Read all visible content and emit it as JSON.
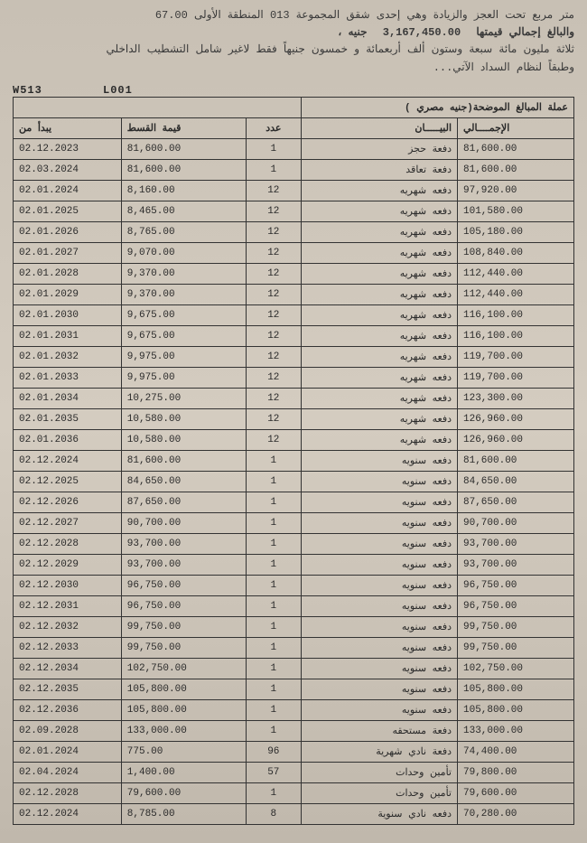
{
  "topText": {
    "line1": "متر مربع تحت العجز والزيادة وهي إحدى شقق المجموعة 013 المنطقة الأولى  67.00",
    "line2_prefix": "والبالغ إجمالي قيمتها",
    "line2_amount": "3,167,450.00",
    "line2_suffix": "جنيه ،",
    "line3": "ثلاثة مليون مائة سبعة وستون ألف أربعمائة و خمسون جنيهاً فقط لاغير شامل التشطيب الداخلي",
    "line4": "وطبقاً لنظام السداد الآتي..."
  },
  "codes": {
    "code1": "W513",
    "code2": "L001"
  },
  "tableHeader": {
    "merged_caption": "عملة المبالغ الموضحة(جنيه مصري )",
    "h_total": "الإجمــــالي",
    "h_desc": "البيـــــان",
    "h_count": "عدد",
    "h_inst": "قيمة القسط",
    "h_date": "يبدأ من"
  },
  "rows": [
    {
      "total": "81,600.00",
      "desc": "دفعة حجز",
      "count": "1",
      "inst": "81,600.00",
      "date": "02.12.2023"
    },
    {
      "total": "81,600.00",
      "desc": "دفعة تعاقد",
      "count": "1",
      "inst": "81,600.00",
      "date": "02.03.2024"
    },
    {
      "total": "97,920.00",
      "desc": "دفعه شهريه",
      "count": "12",
      "inst": "8,160.00",
      "date": "02.01.2024"
    },
    {
      "total": "101,580.00",
      "desc": "دفعه شهريه",
      "count": "12",
      "inst": "8,465.00",
      "date": "02.01.2025"
    },
    {
      "total": "105,180.00",
      "desc": "دفعه شهريه",
      "count": "12",
      "inst": "8,765.00",
      "date": "02.01.2026"
    },
    {
      "total": "108,840.00",
      "desc": "دفعه شهريه",
      "count": "12",
      "inst": "9,070.00",
      "date": "02.01.2027"
    },
    {
      "total": "112,440.00",
      "desc": "دفعه شهريه",
      "count": "12",
      "inst": "9,370.00",
      "date": "02.01.2028"
    },
    {
      "total": "112,440.00",
      "desc": "دفعه شهريه",
      "count": "12",
      "inst": "9,370.00",
      "date": "02.01.2029"
    },
    {
      "total": "116,100.00",
      "desc": "دفعه شهريه",
      "count": "12",
      "inst": "9,675.00",
      "date": "02.01.2030"
    },
    {
      "total": "116,100.00",
      "desc": "دفعه شهريه",
      "count": "12",
      "inst": "9,675.00",
      "date": "02.01.2031"
    },
    {
      "total": "119,700.00",
      "desc": "دفعه شهريه",
      "count": "12",
      "inst": "9,975.00",
      "date": "02.01.2032"
    },
    {
      "total": "119,700.00",
      "desc": "دفعه شهريه",
      "count": "12",
      "inst": "9,975.00",
      "date": "02.01.2033"
    },
    {
      "total": "123,300.00",
      "desc": "دفعه شهريه",
      "count": "12",
      "inst": "10,275.00",
      "date": "02.01.2034"
    },
    {
      "total": "126,960.00",
      "desc": "دفعه شهريه",
      "count": "12",
      "inst": "10,580.00",
      "date": "02.01.2035"
    },
    {
      "total": "126,960.00",
      "desc": "دفعه شهريه",
      "count": "12",
      "inst": "10,580.00",
      "date": "02.01.2036"
    },
    {
      "total": "81,600.00",
      "desc": "دفعه سنويه",
      "count": "1",
      "inst": "81,600.00",
      "date": "02.12.2024"
    },
    {
      "total": "84,650.00",
      "desc": "دفعه سنويه",
      "count": "1",
      "inst": "84,650.00",
      "date": "02.12.2025"
    },
    {
      "total": "87,650.00",
      "desc": "دفعه سنويه",
      "count": "1",
      "inst": "87,650.00",
      "date": "02.12.2026"
    },
    {
      "total": "90,700.00",
      "desc": "دفعه سنويه",
      "count": "1",
      "inst": "90,700.00",
      "date": "02.12.2027"
    },
    {
      "total": "93,700.00",
      "desc": "دفعه سنويه",
      "count": "1",
      "inst": "93,700.00",
      "date": "02.12.2028"
    },
    {
      "total": "93,700.00",
      "desc": "دفعه سنويه",
      "count": "1",
      "inst": "93,700.00",
      "date": "02.12.2029"
    },
    {
      "total": "96,750.00",
      "desc": "دفعه سنويه",
      "count": "1",
      "inst": "96,750.00",
      "date": "02.12.2030"
    },
    {
      "total": "96,750.00",
      "desc": "دفعه سنويه",
      "count": "1",
      "inst": "96,750.00",
      "date": "02.12.2031"
    },
    {
      "total": "99,750.00",
      "desc": "دفعه سنويه",
      "count": "1",
      "inst": "99,750.00",
      "date": "02.12.2032"
    },
    {
      "total": "99,750.00",
      "desc": "دفعه سنويه",
      "count": "1",
      "inst": "99,750.00",
      "date": "02.12.2033"
    },
    {
      "total": "102,750.00",
      "desc": "دفعه سنويه",
      "count": "1",
      "inst": "102,750.00",
      "date": "02.12.2034"
    },
    {
      "total": "105,800.00",
      "desc": "دفعه سنويه",
      "count": "1",
      "inst": "105,800.00",
      "date": "02.12.2035"
    },
    {
      "total": "105,800.00",
      "desc": "دفعه سنويه",
      "count": "1",
      "inst": "105,800.00",
      "date": "02.12.2036"
    },
    {
      "total": "133,000.00",
      "desc": "دفعة مستحقه",
      "count": "1",
      "inst": "133,000.00",
      "date": "02.09.2028"
    },
    {
      "total": "74,400.00",
      "desc": "دفعة نادي شهرية",
      "count": "96",
      "inst": "775.00",
      "date": "02.01.2024"
    },
    {
      "total": "79,800.00",
      "desc": "تأمين وحدات",
      "count": "57",
      "inst": "1,400.00",
      "date": "02.04.2024"
    },
    {
      "total": "79,600.00",
      "desc": "تأمين وحدات",
      "count": "1",
      "inst": "79,600.00",
      "date": "02.12.2028"
    },
    {
      "total": "70,280.00",
      "desc": "دفعه نادي سنوية",
      "count": "8",
      "inst": "8,785.00",
      "date": "02.12.2024"
    }
  ]
}
